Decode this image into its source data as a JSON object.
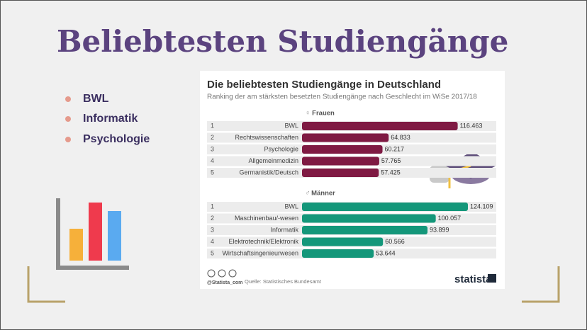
{
  "slide": {
    "title": "Beliebtesten Studiengänge",
    "bullets": [
      "BWL",
      "Informatik",
      "Psychologie"
    ]
  },
  "infographic": {
    "title": "Die beliebtesten Studiengänge in Deutschland",
    "subtitle": "Ranking der am stärksten besetzten Studiengänge nach Geschlecht im WiSe 2017/18",
    "credit": "@Statista_com",
    "source": "Quelle: Statistisches Bundesamt",
    "brand": "statista"
  },
  "chart_data": [
    {
      "type": "bar",
      "title": "Frauen",
      "color": "#7f1a43",
      "ranks": [
        1,
        2,
        3,
        4,
        5
      ],
      "categories": [
        "BWL",
        "Rechtswissenschaften",
        "Psychologie",
        "Allgemeinmedizin",
        "Germanistik/Deutsch"
      ],
      "values": [
        116463,
        64833,
        60217,
        57765,
        57425
      ],
      "value_labels": [
        "116.463",
        "64.833",
        "60.217",
        "57.765",
        "57.425"
      ]
    },
    {
      "type": "bar",
      "title": "Männer",
      "color": "#14977a",
      "ranks": [
        1,
        2,
        3,
        4,
        5
      ],
      "categories": [
        "BWL",
        "Maschinenbau/-wesen",
        "Informatik",
        "Elektrotechnik/Elektronik",
        "Wirtschaftsingenieurwesen"
      ],
      "values": [
        124109,
        100057,
        93899,
        60566,
        53644
      ],
      "value_labels": [
        "124.109",
        "100.057",
        "93.899",
        "60.566",
        "53.644"
      ]
    }
  ]
}
